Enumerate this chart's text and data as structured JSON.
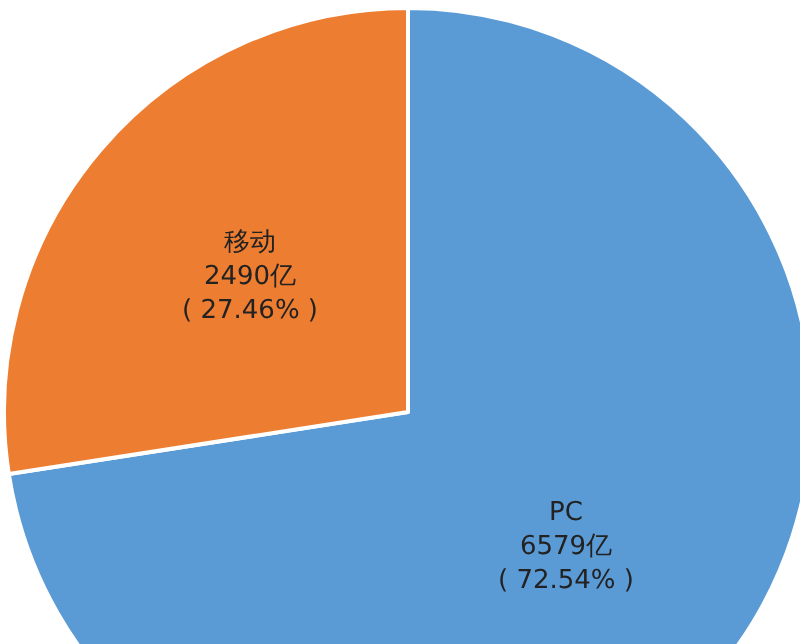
{
  "chart_data": {
    "type": "pie",
    "categories": [
      "PC",
      "移动"
    ],
    "values": [
      6579,
      2490
    ],
    "colors": [
      "#5b9bd5",
      "#ed7d31"
    ],
    "value_labels": [
      "6579亿\n( 72.54% )",
      "2490亿\n( 27.46% )"
    ],
    "legend": false
  }
}
